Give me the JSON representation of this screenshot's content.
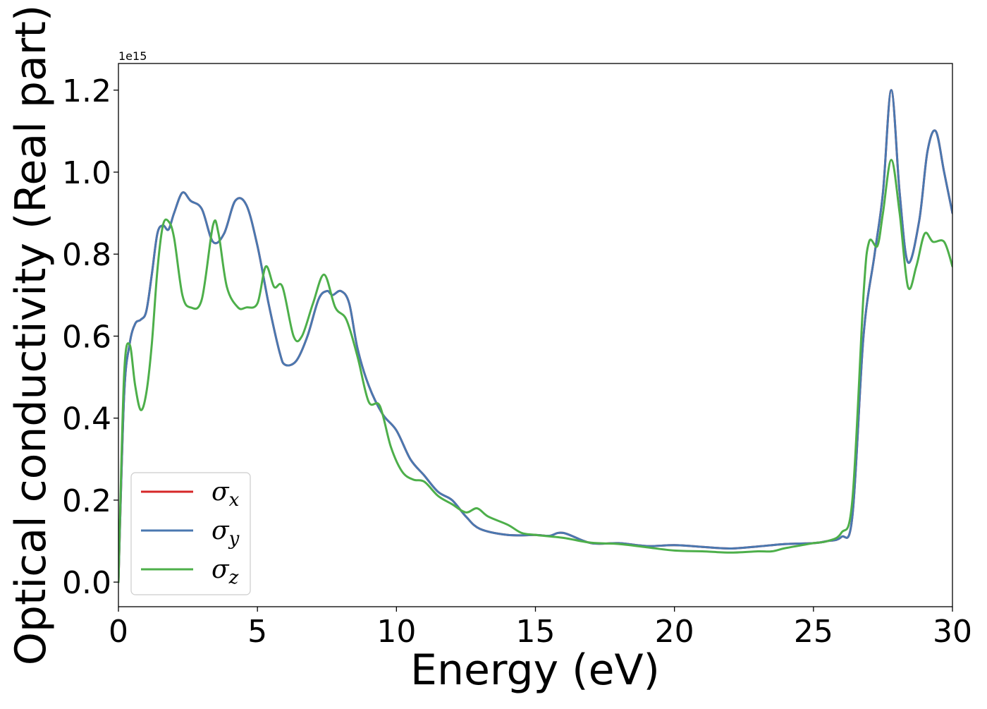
{
  "chart_data": {
    "type": "line",
    "xlabel": "Energy (eV)",
    "ylabel": "Optical conductivity (Real part)",
    "y_offset_text": "1e15",
    "xlim": [
      0,
      30
    ],
    "ylim": [
      -0.06,
      1.265
    ],
    "x_ticks": [
      0,
      5,
      10,
      15,
      20,
      25,
      30
    ],
    "x_tick_labels": [
      "0",
      "5",
      "10",
      "15",
      "20",
      "25",
      "30"
    ],
    "y_ticks": [
      0.0,
      0.2,
      0.4,
      0.6,
      0.8,
      1.0,
      1.2
    ],
    "y_tick_labels": [
      "0.0",
      "0.2",
      "0.4",
      "0.6",
      "0.8",
      "1.0",
      "1.2"
    ],
    "grid": false,
    "legend_position": "lower-left",
    "series": [
      {
        "name": "σx",
        "legend_symbol": "σ",
        "legend_subscript": "x",
        "color": "#d62728",
        "x": [
          0,
          0.2,
          0.4,
          0.6,
          0.8,
          1.0,
          1.2,
          1.4,
          1.6,
          1.8,
          2.0,
          2.3,
          2.6,
          3.0,
          3.4,
          3.8,
          4.2,
          4.6,
          5.0,
          5.4,
          5.8,
          6.0,
          6.4,
          6.8,
          7.2,
          7.5,
          7.7,
          8.0,
          8.3,
          8.6,
          9.0,
          9.5,
          10.0,
          10.5,
          11.0,
          11.5,
          12.0,
          12.5,
          13.0,
          14.0,
          15.0,
          15.5,
          16.0,
          17.0,
          18.0,
          19.0,
          20.0,
          21.0,
          22.0,
          23.0,
          24.0,
          25.0,
          25.5,
          26.0,
          26.4,
          26.8,
          27.2,
          27.5,
          27.8,
          28.1,
          28.4,
          28.8,
          29.1,
          29.4,
          29.7,
          30.0
        ],
        "y": [
          0.0,
          0.45,
          0.58,
          0.63,
          0.64,
          0.66,
          0.75,
          0.85,
          0.87,
          0.86,
          0.9,
          0.95,
          0.93,
          0.91,
          0.83,
          0.85,
          0.93,
          0.92,
          0.82,
          0.68,
          0.56,
          0.53,
          0.54,
          0.6,
          0.69,
          0.71,
          0.7,
          0.71,
          0.68,
          0.57,
          0.48,
          0.41,
          0.37,
          0.3,
          0.26,
          0.22,
          0.2,
          0.16,
          0.13,
          0.115,
          0.115,
          0.113,
          0.12,
          0.095,
          0.095,
          0.088,
          0.09,
          0.086,
          0.082,
          0.087,
          0.093,
          0.095,
          0.1,
          0.11,
          0.16,
          0.6,
          0.8,
          0.95,
          1.2,
          0.95,
          0.78,
          0.88,
          1.05,
          1.1,
          1.0,
          0.9
        ]
      },
      {
        "name": "σy",
        "legend_symbol": "σ",
        "legend_subscript": "y",
        "color": "#4a78b0",
        "x": [
          0,
          0.2,
          0.4,
          0.6,
          0.8,
          1.0,
          1.2,
          1.4,
          1.6,
          1.8,
          2.0,
          2.3,
          2.6,
          3.0,
          3.4,
          3.8,
          4.2,
          4.6,
          5.0,
          5.4,
          5.8,
          6.0,
          6.4,
          6.8,
          7.2,
          7.5,
          7.7,
          8.0,
          8.3,
          8.6,
          9.0,
          9.5,
          10.0,
          10.5,
          11.0,
          11.5,
          12.0,
          12.5,
          13.0,
          14.0,
          15.0,
          15.5,
          16.0,
          17.0,
          18.0,
          19.0,
          20.0,
          21.0,
          22.0,
          23.0,
          24.0,
          25.0,
          25.5,
          26.0,
          26.4,
          26.8,
          27.2,
          27.5,
          27.8,
          28.1,
          28.4,
          28.8,
          29.1,
          29.4,
          29.7,
          30.0
        ],
        "y": [
          0.0,
          0.45,
          0.58,
          0.63,
          0.64,
          0.66,
          0.75,
          0.85,
          0.87,
          0.86,
          0.9,
          0.95,
          0.93,
          0.91,
          0.83,
          0.85,
          0.93,
          0.92,
          0.82,
          0.68,
          0.56,
          0.53,
          0.54,
          0.6,
          0.69,
          0.71,
          0.7,
          0.71,
          0.68,
          0.57,
          0.48,
          0.41,
          0.37,
          0.3,
          0.26,
          0.22,
          0.2,
          0.16,
          0.13,
          0.115,
          0.115,
          0.113,
          0.12,
          0.095,
          0.095,
          0.088,
          0.09,
          0.086,
          0.082,
          0.087,
          0.093,
          0.095,
          0.1,
          0.11,
          0.16,
          0.6,
          0.8,
          0.95,
          1.2,
          0.95,
          0.78,
          0.88,
          1.05,
          1.1,
          1.0,
          0.9
        ]
      },
      {
        "name": "σz",
        "legend_symbol": "σ",
        "legend_subscript": "z",
        "color": "#4daf4a",
        "x": [
          0,
          0.2,
          0.4,
          0.6,
          0.8,
          1.0,
          1.2,
          1.4,
          1.6,
          1.8,
          2.0,
          2.3,
          2.6,
          3.0,
          3.4,
          3.6,
          3.9,
          4.3,
          4.6,
          5.0,
          5.3,
          5.6,
          5.9,
          6.3,
          6.6,
          7.0,
          7.4,
          7.8,
          8.2,
          8.6,
          9.0,
          9.4,
          9.8,
          10.2,
          10.6,
          11.0,
          11.5,
          12.0,
          12.5,
          12.9,
          13.3,
          14.0,
          14.5,
          15.0,
          16.0,
          17.0,
          18.0,
          19.0,
          20.0,
          21.0,
          22.0,
          23.0,
          23.5,
          24.0,
          25.0,
          25.5,
          26.0,
          26.4,
          26.8,
          27.0,
          27.3,
          27.5,
          27.8,
          28.1,
          28.4,
          28.7,
          29.0,
          29.3,
          29.7,
          30.0
        ],
        "y": [
          0.0,
          0.5,
          0.58,
          0.48,
          0.42,
          0.46,
          0.58,
          0.76,
          0.87,
          0.88,
          0.84,
          0.7,
          0.67,
          0.69,
          0.87,
          0.85,
          0.72,
          0.67,
          0.67,
          0.68,
          0.77,
          0.72,
          0.72,
          0.6,
          0.6,
          0.68,
          0.75,
          0.67,
          0.64,
          0.55,
          0.44,
          0.43,
          0.33,
          0.27,
          0.25,
          0.245,
          0.21,
          0.19,
          0.17,
          0.18,
          0.16,
          0.14,
          0.12,
          0.115,
          0.108,
          0.096,
          0.093,
          0.085,
          0.077,
          0.075,
          0.072,
          0.075,
          0.075,
          0.083,
          0.095,
          0.1,
          0.12,
          0.2,
          0.7,
          0.83,
          0.82,
          0.9,
          1.03,
          0.9,
          0.72,
          0.77,
          0.85,
          0.83,
          0.83,
          0.77
        ]
      }
    ]
  }
}
